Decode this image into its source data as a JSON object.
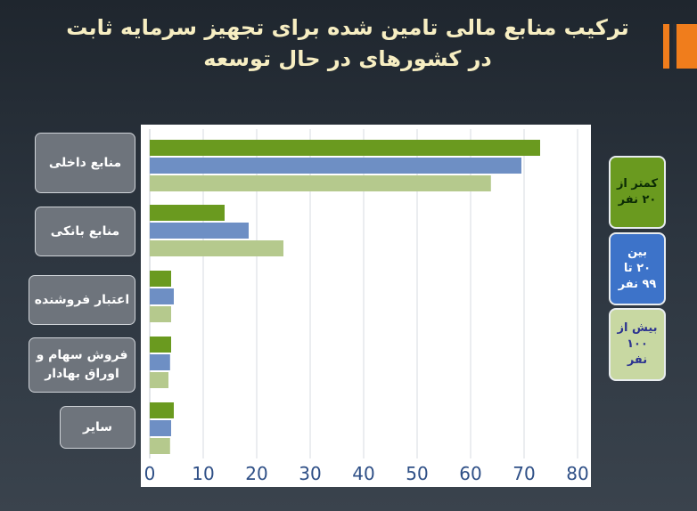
{
  "title": {
    "line1": "ترکیب منابع مالی تامین شده برای تجهیز سرمایه ثابت",
    "line2": "در کشورهای در حال توسعه"
  },
  "colors": {
    "accent": "#f07d1c",
    "title_text": "#f7eec2",
    "series": [
      "#6a9a1f",
      "#6e8fc4",
      "#b5c98d"
    ]
  },
  "chart_data": {
    "type": "bar",
    "orientation": "horizontal",
    "title": "",
    "xlabel": "",
    "ylabel": "",
    "categories": [
      "منابع داخلی",
      "منابع بانکی",
      "اعتبار فروشنده",
      "فروش سهام و\nاوراق بهادار",
      "سایر"
    ],
    "series": [
      {
        "name": "کمتر از\n۲۰ نفر",
        "values": [
          73,
          14,
          4,
          4,
          4.5
        ]
      },
      {
        "name": "بین\n۲۰ تا\n۹۹ نفر",
        "values": [
          69.5,
          18.5,
          4.5,
          3.8,
          4
        ]
      },
      {
        "name": "بیش از\n۱۰۰\nنفر",
        "values": [
          63.8,
          25,
          4,
          3.5,
          3.8
        ]
      }
    ],
    "xlim": [
      0,
      80
    ],
    "xticks": [
      "0",
      "10",
      "20",
      "30",
      "40",
      "50",
      "60",
      "70",
      "80"
    ],
    "grid": true,
    "legend": "right"
  }
}
